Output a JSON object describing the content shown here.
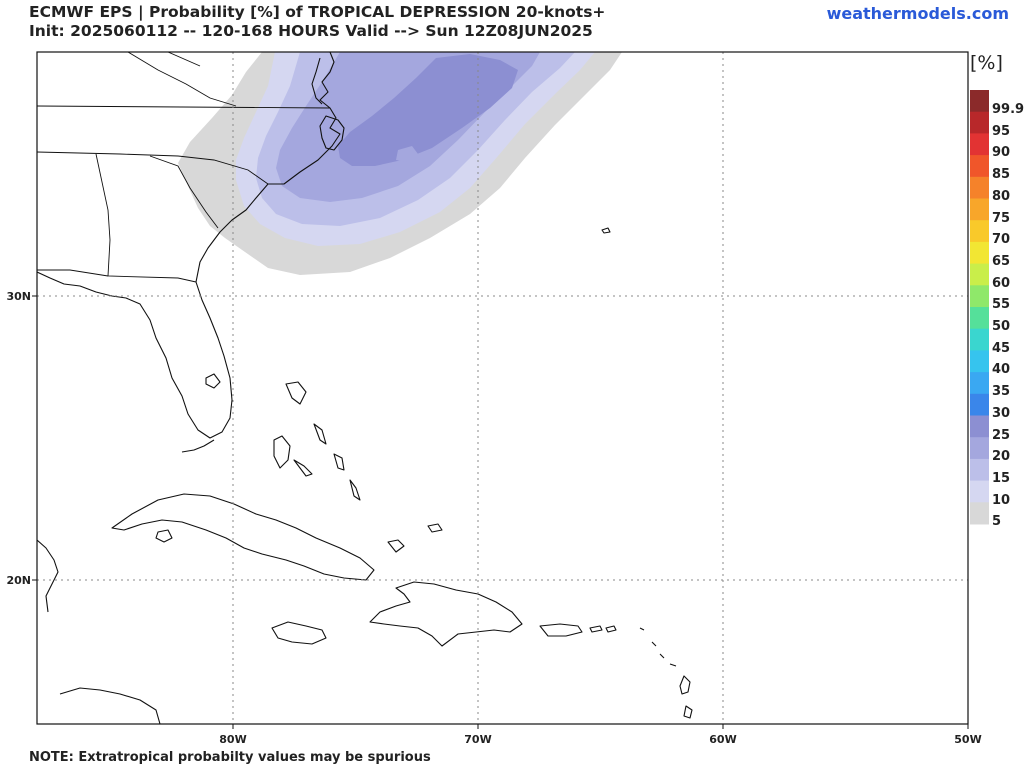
{
  "header": {
    "title_line1": "ECMWF EPS | Probability [%] of TROPICAL DEPRESSION 20-knots+",
    "title_line2": "Init: 2025060112 -- 120-168 HOURS Valid --> Sun 12Z08JUN2025",
    "brand": "weathermodels.com"
  },
  "footer": {
    "note": "NOTE: Extratropical probabilty values may be spurious"
  },
  "axes": {
    "lon_labels": [
      "80W",
      "70W",
      "60W",
      "50W"
    ],
    "lat_labels": [
      "30N",
      "20N"
    ]
  },
  "colorbar": {
    "unit": "[%]",
    "levels": [
      {
        "label": "99.9",
        "color": "#8b2a2a"
      },
      {
        "label": "95",
        "color": "#b8282a"
      },
      {
        "label": "90",
        "color": "#e23333"
      },
      {
        "label": "85",
        "color": "#f0562a"
      },
      {
        "label": "80",
        "color": "#f5822a"
      },
      {
        "label": "75",
        "color": "#f8a62a"
      },
      {
        "label": "70",
        "color": "#f9c92a"
      },
      {
        "label": "65",
        "color": "#f2e633"
      },
      {
        "label": "60",
        "color": "#c9ee4a"
      },
      {
        "label": "55",
        "color": "#8fe86a"
      },
      {
        "label": "50",
        "color": "#55e09a"
      },
      {
        "label": "45",
        "color": "#3ad6cf"
      },
      {
        "label": "40",
        "color": "#36c4ee"
      },
      {
        "label": "35",
        "color": "#3aa8f2"
      },
      {
        "label": "30",
        "color": "#3a86ea"
      },
      {
        "label": "25",
        "color": "#8c8fd2"
      },
      {
        "label": "20",
        "color": "#a4a7de"
      },
      {
        "label": "15",
        "color": "#bcbfe9"
      },
      {
        "label": "10",
        "color": "#d5d7f1"
      },
      {
        "label": "5",
        "color": "#d8d8d8"
      }
    ]
  }
}
